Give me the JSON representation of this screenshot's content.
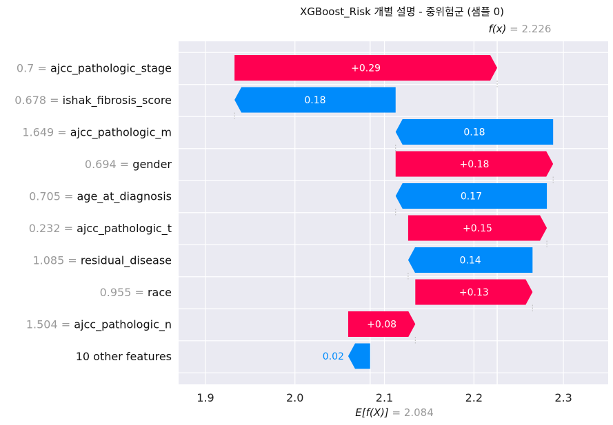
{
  "chart_data": {
    "type": "waterfall",
    "title": "XGBoost_Risk 개별 설명 - 중위험군 (샘플 0)",
    "fx_label": "f(x)",
    "fx_value": "2.226",
    "efx_label": "E[f(X)]",
    "efx_value": "2.084",
    "base_value": 2.084,
    "final_value": 2.226,
    "xlim": [
      1.87,
      2.35
    ],
    "xticks": [
      "1.9",
      "2.0",
      "2.1",
      "2.2",
      "2.3"
    ],
    "grid": true,
    "colors": {
      "positive": "#ff0051",
      "negative": "#008bfb",
      "background": "#eaeaf2",
      "grid": "#ffffff"
    },
    "features": [
      {
        "value": "0.7",
        "name": "ajcc_pathologic_stage",
        "start": 1.9325,
        "end": 2.226,
        "label": "+0.29"
      },
      {
        "value": "0.678",
        "name": "ishak_fibrosis_score",
        "start": 2.1125,
        "end": 1.9325,
        "label": "0.18"
      },
      {
        "value": "1.649",
        "name": "ajcc_pathologic_m",
        "start": 2.2885,
        "end": 2.1125,
        "label": "0.18"
      },
      {
        "value": "0.694",
        "name": "gender",
        "start": 2.1125,
        "end": 2.2885,
        "label": "+0.18"
      },
      {
        "value": "0.705",
        "name": "age_at_diagnosis",
        "start": 2.2815,
        "end": 2.1125,
        "label": "0.17"
      },
      {
        "value": "0.232",
        "name": "ajcc_pathologic_t",
        "start": 2.1265,
        "end": 2.2815,
        "label": "+0.15"
      },
      {
        "value": "1.085",
        "name": "residual_disease",
        "start": 2.2655,
        "end": 2.1265,
        "label": "0.14"
      },
      {
        "value": "0.955",
        "name": "race",
        "start": 2.1345,
        "end": 2.2655,
        "label": "+0.13"
      },
      {
        "value": "1.504",
        "name": "ajcc_pathologic_n",
        "start": 2.0595,
        "end": 2.1345,
        "label": "+0.08"
      },
      {
        "value": "",
        "name": "10 other features",
        "start": 2.084,
        "end": 2.0595,
        "label": "0.02"
      }
    ]
  }
}
